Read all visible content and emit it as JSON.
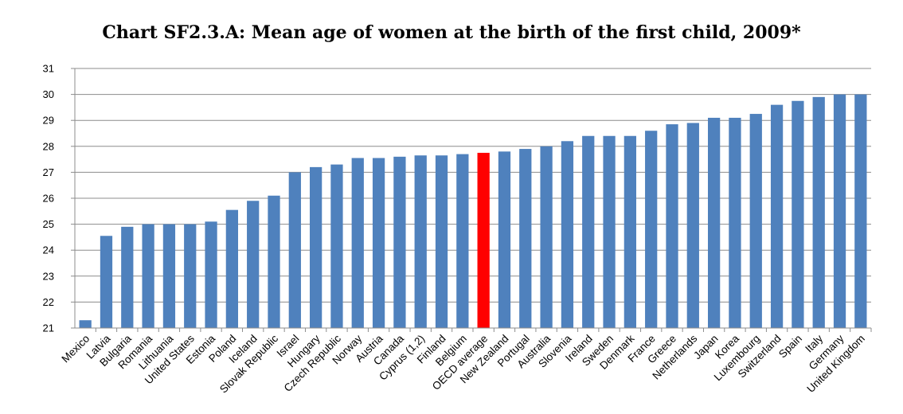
{
  "chart_data": {
    "type": "bar",
    "title": "Chart SF2.3.A: Mean age of women at the birth of the first child, 2009*",
    "xlabel": "",
    "ylabel": "",
    "ylim": [
      21,
      31
    ],
    "yticks": [
      21,
      22,
      23,
      24,
      25,
      26,
      27,
      28,
      29,
      30,
      31
    ],
    "grid": true,
    "legend": "none",
    "bar_color": "#4F81BD",
    "highlight_color": "#FF0000",
    "highlight_category": "OECD average",
    "categories": [
      "Mexico",
      "Latvia",
      "Bulgaria",
      "Romania",
      "Lithuania",
      "United States",
      "Estonia",
      "Poland",
      "Iceland",
      "Slovak Republic",
      "Israel",
      "Hungary",
      "Czech Republic",
      "Norway",
      "Austria",
      "Canada",
      "Cyprus (1,2)",
      "Finland",
      "Belgium",
      "OECD average",
      "New Zealand",
      "Portugal",
      "Australia",
      "Slovenia",
      "Ireland",
      "Sweden",
      "Denmark",
      "France",
      "Greece",
      "Netherlands",
      "Japan",
      "Korea",
      "Luxembourg",
      "Switzerland",
      "Spain",
      "Italy",
      "Germany",
      "United Kingdom"
    ],
    "values": [
      21.3,
      24.55,
      24.9,
      25.0,
      25.0,
      25.0,
      25.1,
      25.55,
      25.9,
      26.1,
      27.0,
      27.2,
      27.3,
      27.55,
      27.55,
      27.6,
      27.65,
      27.65,
      27.7,
      27.75,
      27.8,
      27.9,
      28.0,
      28.2,
      28.4,
      28.4,
      28.4,
      28.6,
      28.85,
      28.9,
      29.1,
      29.1,
      29.25,
      29.6,
      29.75,
      29.9,
      30.0,
      30.0
    ]
  }
}
